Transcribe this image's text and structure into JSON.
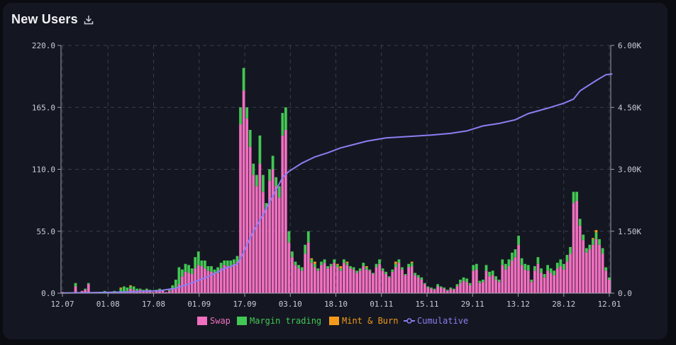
{
  "header": {
    "title": "New Users",
    "download_icon": "download-icon"
  },
  "chart_data": {
    "type": "bar",
    "stacked": true,
    "title": "New Users",
    "x_ticks": [
      "12.07",
      "01.08",
      "17.08",
      "01.09",
      "17.09",
      "03.10",
      "18.10",
      "01.11",
      "15.11",
      "29.11",
      "13.12",
      "28.12",
      "12.01"
    ],
    "y_left_ticks": [
      "0.0",
      "55.0",
      "110.0",
      "165.0",
      "220.0"
    ],
    "y_right_ticks": [
      "0.0",
      "1.50K",
      "3.00K",
      "4.50K",
      "6.00K"
    ],
    "ylim": [
      0,
      220
    ],
    "y2lim": [
      0,
      6000
    ],
    "grid": true,
    "legend_position": "bottom",
    "colors": {
      "swap": "#f06fc0",
      "margin": "#43c754",
      "mint": "#f29a1c",
      "cumulative": "#8f7cf2"
    },
    "series": [
      {
        "name": "Swap",
        "values": [
          1,
          0,
          0,
          0,
          6,
          0,
          2,
          3,
          8,
          0,
          0,
          0,
          0,
          1,
          0,
          0,
          1,
          0,
          1,
          1,
          2,
          4,
          3,
          2,
          3,
          2,
          3,
          2,
          1,
          2,
          3,
          2,
          1,
          2,
          4,
          5,
          8,
          15,
          19,
          18,
          17,
          22,
          25,
          24,
          22,
          20,
          19,
          17,
          18,
          22,
          25,
          24,
          23,
          26,
          28,
          150,
          180,
          155,
          130,
          105,
          95,
          115,
          90,
          75,
          100,
          110,
          95,
          85,
          140,
          145,
          45,
          32,
          25,
          22,
          20,
          35,
          45,
          27,
          23,
          20,
          25,
          27,
          22,
          24,
          27,
          23,
          20,
          27,
          25,
          22,
          21,
          18,
          20,
          24,
          21,
          20,
          17,
          23,
          26,
          20,
          17,
          14,
          19,
          23,
          27,
          21,
          16,
          23,
          24,
          16,
          14,
          12,
          8,
          5,
          4,
          3,
          6,
          5,
          4,
          2,
          4,
          3,
          6,
          9,
          11,
          10,
          7,
          20,
          21,
          9,
          10,
          20,
          15,
          16,
          12,
          10,
          25,
          21,
          24,
          29,
          32,
          43,
          25,
          21,
          20,
          10,
          20,
          26,
          18,
          14,
          20,
          18,
          16,
          22,
          24,
          21,
          28,
          35,
          80,
          82,
          60,
          47,
          36,
          39,
          43,
          48,
          43,
          35,
          20,
          12
        ]
      },
      {
        "name": "Margin trading",
        "values": [
          0,
          0,
          0,
          0,
          3,
          0,
          0,
          1,
          1,
          0,
          0,
          0,
          0,
          1,
          0,
          0,
          1,
          0,
          3,
          5,
          3,
          2,
          3,
          2,
          1,
          1,
          1,
          1,
          0,
          1,
          1,
          1,
          0,
          1,
          3,
          7,
          15,
          6,
          7,
          7,
          5,
          10,
          12,
          5,
          7,
          4,
          5,
          4,
          5,
          5,
          4,
          5,
          6,
          4,
          5,
          15,
          20,
          10,
          15,
          10,
          10,
          25,
          15,
          5,
          10,
          12,
          8,
          10,
          20,
          20,
          10,
          5,
          3,
          3,
          3,
          8,
          10,
          3,
          3,
          2,
          3,
          3,
          2,
          2,
          3,
          2,
          2,
          3,
          2,
          2,
          2,
          2,
          2,
          3,
          2,
          1,
          1,
          3,
          4,
          2,
          2,
          1,
          2,
          3,
          3,
          2,
          1,
          3,
          3,
          2,
          2,
          2,
          1,
          1,
          1,
          1,
          2,
          1,
          1,
          1,
          1,
          1,
          2,
          3,
          3,
          3,
          2,
          5,
          5,
          2,
          2,
          5,
          4,
          4,
          3,
          2,
          5,
          5,
          6,
          7,
          7,
          8,
          6,
          5,
          5,
          2,
          4,
          6,
          4,
          3,
          5,
          4,
          4,
          5,
          6,
          5,
          6,
          6,
          10,
          8,
          6,
          5,
          4,
          4,
          5,
          6,
          5,
          5,
          3,
          2
        ]
      },
      {
        "name": "Mint & Burn",
        "values": [
          0,
          0,
          0,
          0,
          0,
          0,
          0,
          0,
          0,
          0,
          0,
          0,
          0,
          0,
          0,
          0,
          0,
          0,
          1,
          0,
          0,
          1,
          0,
          0,
          0,
          0,
          0,
          0,
          0,
          0,
          0,
          0,
          0,
          0,
          0,
          0,
          0,
          0,
          0,
          0,
          0,
          0,
          0,
          0,
          0,
          0,
          0,
          0,
          0,
          0,
          0,
          0,
          0,
          0,
          0,
          0,
          0,
          0,
          0,
          0,
          0,
          0,
          0,
          0,
          0,
          0,
          0,
          0,
          0,
          0,
          0,
          0,
          0,
          0,
          0,
          0,
          0,
          1,
          2,
          0,
          0,
          0,
          0,
          0,
          0,
          1,
          2,
          0,
          1,
          0,
          0,
          0,
          0,
          0,
          1,
          0,
          0,
          0,
          0,
          0,
          0,
          0,
          0,
          2,
          0,
          0,
          0,
          0,
          1,
          0,
          0,
          0,
          0,
          0,
          0,
          0,
          0,
          0,
          0,
          0,
          0,
          0,
          0,
          0,
          0,
          0,
          0,
          0,
          0,
          0,
          0,
          0,
          0,
          0,
          0,
          0,
          0,
          0,
          0,
          0,
          0,
          0,
          0,
          0,
          0,
          0,
          0,
          0,
          0,
          0,
          0,
          0,
          0,
          0,
          0,
          0,
          0,
          0,
          0,
          0,
          0,
          0,
          0,
          0,
          1,
          2,
          0,
          0,
          0,
          0
        ]
      },
      {
        "name": "Cumulative",
        "axis": "right",
        "points": [
          [
            0,
            5
          ],
          [
            10,
            15
          ],
          [
            20,
            30
          ],
          [
            30,
            60
          ],
          [
            35,
            120
          ],
          [
            40,
            250
          ],
          [
            45,
            400
          ],
          [
            50,
            600
          ],
          [
            54,
            700
          ],
          [
            56,
            1000
          ],
          [
            59,
            1500
          ],
          [
            62,
            1900
          ],
          [
            64,
            2200
          ],
          [
            66,
            2500
          ],
          [
            68,
            2800
          ],
          [
            70,
            2950
          ],
          [
            74,
            3150
          ],
          [
            78,
            3300
          ],
          [
            82,
            3400
          ],
          [
            86,
            3520
          ],
          [
            90,
            3600
          ],
          [
            94,
            3680
          ],
          [
            100,
            3760
          ],
          [
            108,
            3800
          ],
          [
            114,
            3830
          ],
          [
            120,
            3870
          ],
          [
            125,
            3930
          ],
          [
            130,
            4050
          ],
          [
            135,
            4110
          ],
          [
            140,
            4200
          ],
          [
            144,
            4350
          ],
          [
            150,
            4480
          ],
          [
            155,
            4600
          ],
          [
            158,
            4700
          ],
          [
            160,
            4900
          ],
          [
            165,
            5150
          ],
          [
            168,
            5290
          ],
          [
            170,
            5310
          ]
        ]
      }
    ],
    "legend": [
      "Swap",
      "Margin trading",
      "Mint & Burn",
      "Cumulative"
    ]
  }
}
